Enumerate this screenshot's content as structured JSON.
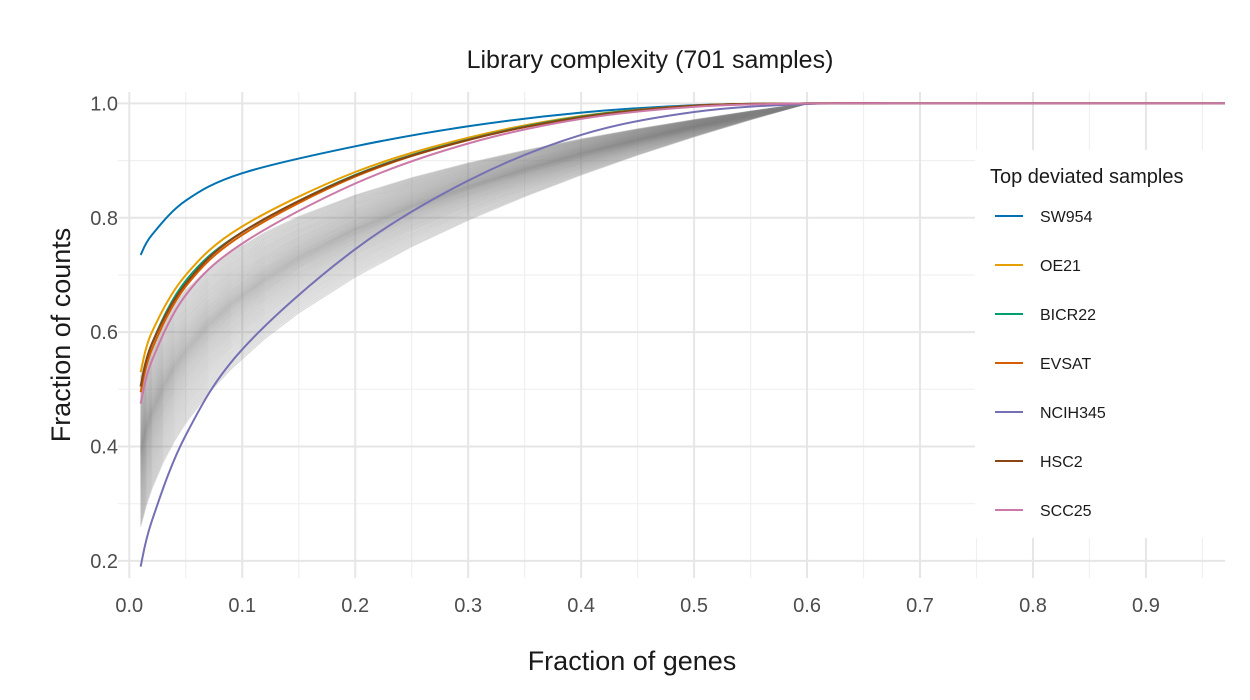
{
  "chart_data": {
    "type": "line",
    "title": "Library complexity (701 samples)",
    "xlabel": "Fraction of genes",
    "ylabel": "Fraction of counts",
    "xlim": [
      -0.01,
      0.97
    ],
    "ylim": [
      0.17,
      1.02
    ],
    "x_ticks": [
      "0.0",
      "0.1",
      "0.2",
      "0.3",
      "0.4",
      "0.5",
      "0.6",
      "0.7",
      "0.8",
      "0.9"
    ],
    "y_ticks": [
      "0.2",
      "0.4",
      "0.6",
      "0.8",
      "1.0"
    ],
    "grid": true,
    "legend": {
      "title": "Top deviated samples",
      "placement": "right"
    },
    "background_series": {
      "count": 694,
      "color": "#808080",
      "y_at_0_01_range": [
        0.22,
        0.48
      ]
    },
    "series": [
      {
        "name": "SW954",
        "color": "#0072B2",
        "x": [
          0.01,
          0.02,
          0.05,
          0.1,
          0.2,
          0.3,
          0.4,
          0.5,
          0.6,
          0.7,
          0.8,
          0.9,
          0.97
        ],
        "y": [
          0.735,
          0.77,
          0.83,
          0.878,
          0.925,
          0.96,
          0.984,
          0.997,
          1.0,
          1.0,
          1.0,
          1.0,
          1.0
        ]
      },
      {
        "name": "OE21",
        "color": "#E69F00",
        "x": [
          0.01,
          0.02,
          0.05,
          0.1,
          0.2,
          0.3,
          0.4,
          0.5,
          0.6,
          0.7,
          0.8,
          0.9,
          0.97
        ],
        "y": [
          0.53,
          0.6,
          0.7,
          0.785,
          0.88,
          0.94,
          0.978,
          0.996,
          1.0,
          1.0,
          1.0,
          1.0,
          1.0
        ]
      },
      {
        "name": "BICR22",
        "color": "#009E73",
        "x": [
          0.01,
          0.02,
          0.05,
          0.1,
          0.2,
          0.3,
          0.4,
          0.5,
          0.6,
          0.7,
          0.8,
          0.9,
          0.97
        ],
        "y": [
          0.505,
          0.58,
          0.69,
          0.775,
          0.875,
          0.937,
          0.977,
          0.996,
          1.0,
          1.0,
          1.0,
          1.0,
          1.0
        ]
      },
      {
        "name": "EVSAT",
        "color": "#D55E00",
        "x": [
          0.01,
          0.02,
          0.05,
          0.1,
          0.2,
          0.3,
          0.4,
          0.5,
          0.6,
          0.7,
          0.8,
          0.9,
          0.97
        ],
        "y": [
          0.495,
          0.57,
          0.68,
          0.77,
          0.872,
          0.936,
          0.976,
          0.996,
          1.0,
          1.0,
          1.0,
          1.0,
          1.0
        ]
      },
      {
        "name": "NCIH345",
        "color": "#7570B3",
        "x": [
          0.01,
          0.02,
          0.05,
          0.1,
          0.2,
          0.3,
          0.4,
          0.5,
          0.6,
          0.7,
          0.8,
          0.9,
          0.97
        ],
        "y": [
          0.19,
          0.27,
          0.42,
          0.57,
          0.745,
          0.865,
          0.945,
          0.985,
          0.999,
          1.0,
          1.0,
          1.0,
          1.0
        ]
      },
      {
        "name": "HSC2",
        "color": "#8B4513",
        "x": [
          0.01,
          0.02,
          0.05,
          0.1,
          0.2,
          0.3,
          0.4,
          0.5,
          0.6,
          0.7,
          0.8,
          0.9,
          0.97
        ],
        "y": [
          0.505,
          0.58,
          0.685,
          0.775,
          0.874,
          0.936,
          0.976,
          0.996,
          1.0,
          1.0,
          1.0,
          1.0,
          1.0
        ]
      },
      {
        "name": "SCC25",
        "color": "#CC79A7",
        "x": [
          0.01,
          0.02,
          0.05,
          0.1,
          0.2,
          0.3,
          0.4,
          0.5,
          0.6,
          0.7,
          0.8,
          0.9,
          0.97
        ],
        "y": [
          0.475,
          0.55,
          0.665,
          0.755,
          0.86,
          0.93,
          0.973,
          0.994,
          1.0,
          1.0,
          1.0,
          1.0,
          1.0
        ]
      }
    ]
  }
}
